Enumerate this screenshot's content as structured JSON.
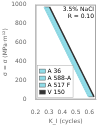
{
  "chart_data": {
    "type": "area",
    "annotation": "3.5% NaCl\nR = 0.10",
    "xlabel": "K_I (cycles)",
    "ylabel": "σ = σ (MPa·m¹²)",
    "series": [
      {
        "name": "A 36",
        "color": "#90dce8",
        "x": [
          0.265,
          0.595
        ],
        "values": [
          975,
          30
        ]
      },
      {
        "name": "A 588-A",
        "color": "#90dce8",
        "x": [],
        "values": []
      },
      {
        "name": "A 517 F",
        "color": "#90dce8",
        "x": [],
        "values": []
      },
      {
        "name": "V 150",
        "color": "#333333",
        "x": [
          0.305,
          0.635
        ],
        "values": [
          975,
          30
        ]
      }
    ],
    "xlim": [
      0.2,
      0.65
    ],
    "xticks": [
      0.2,
      0.3,
      0.4,
      0.5,
      0.6
    ],
    "ylim": [
      0,
      1000
    ],
    "yticks": [
      0,
      200,
      400,
      600,
      800,
      1000
    ],
    "grid": false,
    "legend": "lower left"
  }
}
